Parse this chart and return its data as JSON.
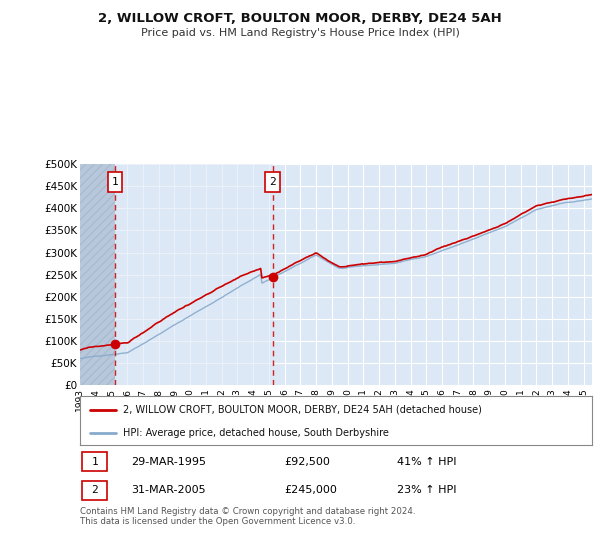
{
  "title": "2, WILLOW CROFT, BOULTON MOOR, DERBY, DE24 5AH",
  "subtitle": "Price paid vs. HM Land Registry's House Price Index (HPI)",
  "property_color": "#cc0000",
  "hpi_color": "#88aacc",
  "sale1_date_num": 1995.24,
  "sale1_price": 92500,
  "sale2_date_num": 2005.24,
  "sale2_price": 245000,
  "ylim": [
    0,
    500000
  ],
  "xlim": [
    1993.0,
    2025.5
  ],
  "yticks": [
    0,
    50000,
    100000,
    150000,
    200000,
    250000,
    300000,
    350000,
    400000,
    450000,
    500000
  ],
  "ytick_labels": [
    "£0",
    "£50K",
    "£100K",
    "£150K",
    "£200K",
    "£250K",
    "£300K",
    "£350K",
    "£400K",
    "£450K",
    "£500K"
  ],
  "xtick_years": [
    1993,
    1994,
    1995,
    1996,
    1997,
    1998,
    1999,
    2000,
    2001,
    2002,
    2003,
    2004,
    2005,
    2006,
    2007,
    2008,
    2009,
    2010,
    2011,
    2012,
    2013,
    2014,
    2015,
    2016,
    2017,
    2018,
    2019,
    2020,
    2021,
    2022,
    2023,
    2024,
    2025
  ],
  "legend_label1": "2, WILLOW CROFT, BOULTON MOOR, DERBY, DE24 5AH (detached house)",
  "legend_label2": "HPI: Average price, detached house, South Derbyshire",
  "table_row1": [
    "1",
    "29-MAR-1995",
    "£92,500",
    "41% ↑ HPI"
  ],
  "table_row2": [
    "2",
    "31-MAR-2005",
    "£245,000",
    "23% ↑ HPI"
  ],
  "footnote": "Contains HM Land Registry data © Crown copyright and database right 2024.\nThis data is licensed under the Open Government Licence v3.0.",
  "bg_color": "#dce8f5",
  "grid_color": "#ffffff",
  "hatch_color": "#b8c8dc",
  "shade_color": "#dce8f5"
}
